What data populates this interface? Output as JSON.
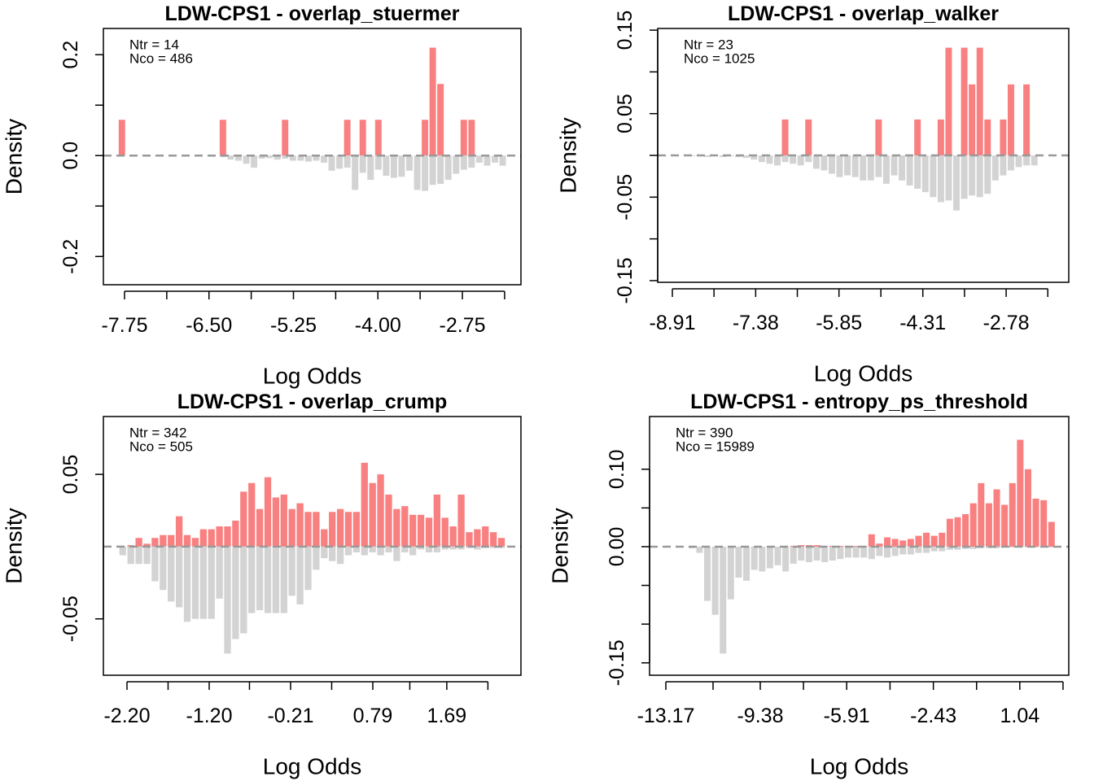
{
  "chart_data": [
    {
      "type": "histogram",
      "title": "LDW-CPS1 - overlap_stuermer",
      "xlabel": "Log Odds",
      "ylabel": "Density",
      "annotations": [
        "Ntr =  14",
        "Nco =  486"
      ],
      "bins": [
        -7.846,
        -7.731,
        -7.616,
        -7.501,
        -7.386,
        -7.271,
        -7.156,
        -7.041,
        -6.926,
        -6.811,
        -6.696,
        -6.581,
        -6.466,
        -6.351,
        -6.236,
        -6.121,
        -6.006,
        -5.891,
        -5.776,
        -5.661,
        -5.546,
        -5.431,
        -5.316,
        -5.201,
        -5.086,
        -4.971,
        -4.856,
        -4.741,
        -4.626,
        -4.511,
        -4.396,
        -4.281,
        -4.166,
        -4.051,
        -3.936,
        -3.821,
        -3.706,
        -3.591,
        -3.476,
        -3.361,
        -3.246,
        -3.131,
        -3.016,
        -2.901,
        -2.786,
        -2.671,
        -2.556,
        -2.441,
        -2.326,
        -2.211,
        -2.096
      ],
      "series": [
        {
          "color": "#f98080",
          "values": [
            0.071,
            0,
            0,
            0,
            0,
            0,
            0,
            0,
            0,
            0,
            0,
            0,
            0,
            0.071,
            0,
            0,
            0,
            0,
            0,
            0,
            0,
            0.071,
            0,
            0,
            0,
            0,
            0,
            0,
            0,
            0.071,
            0,
            0.071,
            0,
            0.071,
            0,
            0,
            0,
            0,
            0,
            0.071,
            0.214,
            0.142,
            0,
            0,
            0.071,
            0.071,
            0,
            0,
            0,
            0
          ]
        },
        {
          "color": "#d3d3d3",
          "values": [
            0,
            0,
            0,
            0,
            0,
            0,
            0,
            0,
            0,
            0,
            0,
            0,
            0,
            -0.003,
            -0.008,
            -0.01,
            -0.016,
            -0.024,
            -0.006,
            -0.005,
            -0.008,
            -0.006,
            -0.01,
            -0.01,
            -0.012,
            -0.01,
            -0.014,
            -0.03,
            -0.026,
            -0.024,
            -0.068,
            -0.034,
            -0.048,
            -0.028,
            -0.04,
            -0.044,
            -0.042,
            -0.03,
            -0.068,
            -0.07,
            -0.058,
            -0.056,
            -0.048,
            -0.036,
            -0.028,
            -0.024,
            -0.014,
            -0.02,
            -0.014,
            -0.02
          ]
        }
      ],
      "hline": 0,
      "xlim": [
        -8.063,
        -1.883
      ],
      "ylim": [
        -0.256,
        0.252
      ],
      "xticks": [
        -7.75,
        {
          "value": -6.5,
          "label": "-6.50"
        },
        -5.25,
        {
          "value": -4,
          "label": "-4.00"
        },
        -2.75
      ],
      "xminorticks": [
        -7.125,
        -5.875,
        -4.625,
        -3.375,
        -2.125
      ],
      "yticks": [
        -0.2,
        {
          "value": 0,
          "label": "0.0"
        },
        0.2
      ],
      "yminorticks": [
        -0.1,
        0.1
      ]
    },
    {
      "type": "histogram",
      "title": "LDW-CPS1 - overlap_walker",
      "xlabel": "Log Odds",
      "ylabel": "Density",
      "annotations": [
        "Ntr =  23",
        "Nco =  1025"
      ],
      "bins": [
        -8.626,
        -8.483,
        -8.34,
        -8.197,
        -8.054,
        -7.911,
        -7.768,
        -7.625,
        -7.482,
        -7.339,
        -7.196,
        -7.053,
        -6.91,
        -6.767,
        -6.624,
        -6.481,
        -6.338,
        -6.195,
        -6.052,
        -5.909,
        -5.766,
        -5.623,
        -5.48,
        -5.337,
        -5.194,
        -5.051,
        -4.908,
        -4.765,
        -4.622,
        -4.479,
        -4.336,
        -4.193,
        -4.05,
        -3.907,
        -3.764,
        -3.621,
        -3.478,
        -3.335,
        -3.192,
        -3.049,
        -2.906,
        -2.763,
        -2.62,
        -2.477,
        -2.334,
        -2.191
      ],
      "series": [
        {
          "color": "#f98080",
          "values": [
            0,
            0,
            0,
            0,
            0,
            0,
            0,
            0,
            0,
            0,
            0,
            0,
            0.043,
            0,
            0,
            0.043,
            0,
            0,
            0,
            0,
            0,
            0,
            0,
            0,
            0.043,
            0,
            0,
            0,
            0,
            0.043,
            0,
            0,
            0.043,
            0.129,
            0,
            0.129,
            0.085,
            0.129,
            0.043,
            0,
            0.043,
            0.085,
            0,
            0.085,
            0
          ]
        },
        {
          "color": "#d3d3d3",
          "values": [
            -0.001,
            -0.001,
            -0.002,
            -0.001,
            -0.002,
            -0.001,
            -0.002,
            -0.003,
            -0.005,
            -0.008,
            -0.01,
            -0.012,
            -0.008,
            -0.01,
            -0.012,
            -0.008,
            -0.016,
            -0.018,
            -0.022,
            -0.026,
            -0.024,
            -0.026,
            -0.03,
            -0.03,
            -0.026,
            -0.034,
            -0.024,
            -0.03,
            -0.036,
            -0.04,
            -0.044,
            -0.05,
            -0.056,
            -0.054,
            -0.066,
            -0.052,
            -0.048,
            -0.05,
            -0.046,
            -0.03,
            -0.024,
            -0.018,
            -0.014,
            -0.012,
            -0.012
          ]
        }
      ],
      "hline": 0,
      "xlim": [
        -9.179,
        -1.63
      ],
      "ylim": [
        -0.152,
        0.152
      ],
      "xticks": [
        -8.91,
        -7.38,
        -5.85,
        -4.31,
        -2.78
      ],
      "xminorticks": [
        -8.145,
        -6.615,
        -5.08,
        -3.545,
        -2.015
      ],
      "yticks": [
        -0.15,
        -0.05,
        0.05,
        0.15
      ],
      "yminorticks": [
        -0.1,
        0,
        0.1
      ]
    },
    {
      "type": "histogram",
      "title": "LDW-CPS1 - overlap_crump",
      "xlabel": "Log Odds",
      "ylabel": "Density",
      "annotations": [
        "Ntr =  342",
        "Nco =  505"
      ],
      "bins": [
        -2.3,
        -2.202,
        -2.104,
        -2.006,
        -1.908,
        -1.81,
        -1.712,
        -1.614,
        -1.516,
        -1.418,
        -1.32,
        -1.222,
        -1.124,
        -1.026,
        -0.928,
        -0.83,
        -0.732,
        -0.634,
        -0.536,
        -0.438,
        -0.34,
        -0.242,
        -0.144,
        -0.046,
        0.052,
        0.15,
        0.248,
        0.346,
        0.444,
        0.542,
        0.64,
        0.738,
        0.836,
        0.934,
        1.032,
        1.13,
        1.228,
        1.326,
        1.424,
        1.522,
        1.62,
        1.718,
        1.816,
        1.914,
        2.012,
        2.11,
        2.208,
        2.306,
        2.404
      ],
      "series": [
        {
          "color": "#f98080",
          "values": [
            0,
            0.001,
            0.006,
            0.002,
            0.006,
            0.008,
            0.008,
            0.021,
            0.008,
            0.006,
            0.012,
            0.012,
            0.014,
            0.014,
            0.018,
            0.038,
            0.044,
            0.026,
            0.048,
            0.034,
            0.036,
            0.026,
            0.03,
            0.024,
            0.024,
            0.012,
            0.024,
            0.026,
            0.024,
            0.024,
            0.058,
            0.044,
            0.05,
            0.036,
            0.026,
            0.028,
            0.022,
            0.022,
            0.02,
            0.036,
            0.02,
            0.014,
            0.036,
            0.01,
            0.012,
            0.014,
            0.01,
            0.006
          ]
        },
        {
          "color": "#d3d3d3",
          "values": [
            -0.006,
            -0.012,
            -0.012,
            -0.012,
            -0.024,
            -0.03,
            -0.038,
            -0.042,
            -0.052,
            -0.05,
            -0.05,
            -0.05,
            -0.036,
            -0.074,
            -0.064,
            -0.06,
            -0.046,
            -0.044,
            -0.046,
            -0.046,
            -0.046,
            -0.034,
            -0.04,
            -0.03,
            -0.016,
            -0.008,
            -0.01,
            -0.012,
            -0.006,
            -0.004,
            -0.006,
            -0.004,
            -0.006,
            -0.004,
            -0.01,
            -0.004,
            -0.006,
            -0.002,
            -0.004,
            -0.004,
            -0.002,
            -0.002,
            -0.002,
            -0.001,
            -0.002,
            -0.001,
            -0.001,
            -0.001
          ]
        }
      ],
      "hline": 0,
      "xlim": [
        -2.487,
        2.592
      ],
      "ylim": [
        -0.089,
        0.09
      ],
      "xticks": [
        {
          "value": -2.2,
          "label": "-2.20"
        },
        {
          "value": -1.2,
          "label": "-1.20"
        },
        -0.21,
        0.79,
        1.69
      ],
      "xminorticks": [
        -1.7,
        -0.71,
        0.29,
        1.24,
        2.19
      ],
      "yticks": [
        -0.05,
        0.05
      ],
      "yminorticks": []
    },
    {
      "type": "histogram",
      "title": "LDW-CPS1 - entropy_ps_threshold",
      "xlabel": "Log Odds",
      "ylabel": "Density",
      "annotations": [
        "Ntr =  390",
        "Nco =  15989"
      ],
      "bins": [
        -12.288,
        -11.974,
        -11.66,
        -11.346,
        -11.032,
        -10.718,
        -10.404,
        -10.09,
        -9.776,
        -9.462,
        -9.148,
        -8.834,
        -8.52,
        -8.206,
        -7.892,
        -7.578,
        -7.264,
        -6.95,
        -6.636,
        -6.322,
        -6.008,
        -5.694,
        -5.38,
        -5.066,
        -4.752,
        -4.438,
        -4.124,
        -3.81,
        -3.496,
        -3.182,
        -2.868,
        -2.554,
        -2.24,
        -1.926,
        -1.612,
        -1.298,
        -0.984,
        -0.67,
        -0.356,
        -0.042,
        0.272,
        0.586,
        0.9,
        1.214,
        1.528,
        1.842,
        2.156,
        2.47
      ],
      "series": [
        {
          "color": "#f98080",
          "values": [
            0,
            0,
            0,
            0,
            0,
            0,
            0,
            0,
            0,
            0,
            0,
            0,
            0,
            0.001,
            0.002,
            0.002,
            0.002,
            0.001,
            0.001,
            0.001,
            0.001,
            0.001,
            0.001,
            0.016,
            0.004,
            0.012,
            0.01,
            0.008,
            0.01,
            0.014,
            0.018,
            0.014,
            0.018,
            0.036,
            0.038,
            0.042,
            0.056,
            0.082,
            0.056,
            0.074,
            0.054,
            0.082,
            0.138,
            0.1,
            0.062,
            0.06,
            0.032
          ]
        },
        {
          "color": "#d3d3d3",
          "values": [
            -0.002,
            -0.008,
            -0.07,
            -0.088,
            -0.138,
            -0.068,
            -0.04,
            -0.044,
            -0.03,
            -0.032,
            -0.028,
            -0.024,
            -0.032,
            -0.022,
            -0.018,
            -0.02,
            -0.018,
            -0.02,
            -0.018,
            -0.016,
            -0.014,
            -0.014,
            -0.014,
            -0.016,
            -0.012,
            -0.014,
            -0.012,
            -0.01,
            -0.01,
            -0.008,
            -0.008,
            -0.006,
            -0.006,
            -0.004,
            -0.004,
            -0.003,
            -0.003,
            -0.002,
            -0.002,
            -0.002,
            -0.001,
            -0.001,
            -0.001,
            -0.001,
            -0.001,
            -0.001,
            -0.001
          ]
        }
      ],
      "hline": 0,
      "xlim": [
        -13.824,
        3.006
      ],
      "ylim": [
        -0.166,
        0.168
      ],
      "xticks": [
        -13.17,
        -9.38,
        -5.91,
        -2.43,
        1.04
      ],
      "xminorticks": [
        -11.275,
        -7.645,
        -4.17,
        -0.695,
        2.775
      ],
      "yticks": [
        {
          "value": -0.15,
          "label": "-0.15"
        },
        {
          "value": 0,
          "label": "0.00"
        },
        {
          "value": 0.1,
          "label": "0.10"
        }
      ],
      "yminorticks": [
        -0.1,
        -0.05,
        0.05
      ]
    }
  ]
}
